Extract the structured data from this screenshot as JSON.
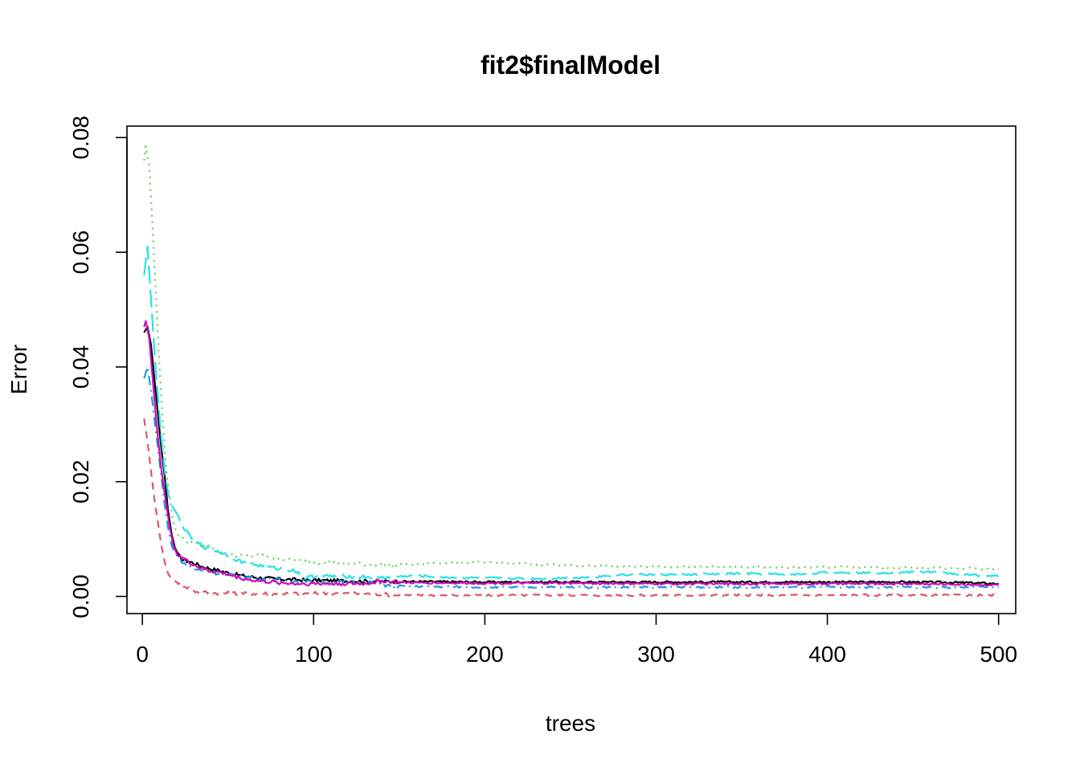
{
  "chart_data": {
    "type": "line",
    "title": "fit2$finalModel",
    "xlabel": "trees",
    "ylabel": "Error",
    "xlim": [
      -9,
      510
    ],
    "ylim": [
      -0.003,
      0.082
    ],
    "xticks": [
      0,
      100,
      200,
      300,
      400,
      500
    ],
    "xtick_labels": [
      "0",
      "100",
      "200",
      "300",
      "400",
      "500"
    ],
    "yticks": [
      0.0,
      0.02,
      0.04,
      0.06,
      0.08
    ],
    "ytick_labels": [
      "0.00",
      "0.02",
      "0.04",
      "0.06",
      "0.08"
    ],
    "grid": false,
    "legend": "none",
    "series": [
      {
        "key": "oob",
        "color": "#000000",
        "dash": "",
        "points": [
          [
            1,
            0.046
          ],
          [
            3,
            0.047
          ],
          [
            5,
            0.044
          ],
          [
            7,
            0.038
          ],
          [
            9,
            0.032
          ],
          [
            11,
            0.026
          ],
          [
            13,
            0.021
          ],
          [
            15,
            0.015
          ],
          [
            17,
            0.011
          ],
          [
            19,
            0.0085
          ],
          [
            21,
            0.0072
          ],
          [
            23,
            0.0065
          ],
          [
            26,
            0.0062
          ],
          [
            30,
            0.0058
          ],
          [
            35,
            0.0052
          ],
          [
            40,
            0.0048
          ],
          [
            45,
            0.0045
          ],
          [
            50,
            0.0041
          ],
          [
            55,
            0.0038
          ],
          [
            60,
            0.0035
          ],
          [
            70,
            0.0032
          ],
          [
            80,
            0.003
          ],
          [
            90,
            0.0029
          ],
          [
            100,
            0.0028
          ],
          [
            120,
            0.0027
          ],
          [
            150,
            0.0026
          ],
          [
            200,
            0.0025
          ],
          [
            250,
            0.0025
          ],
          [
            300,
            0.0025
          ],
          [
            350,
            0.0025
          ],
          [
            400,
            0.0025
          ],
          [
            450,
            0.0025
          ],
          [
            480,
            0.0024
          ],
          [
            500,
            0.0022
          ]
        ]
      },
      {
        "key": "class-2",
        "color": "#DF536B",
        "dash": "9,7",
        "points": [
          [
            1,
            0.031
          ],
          [
            3,
            0.027
          ],
          [
            5,
            0.022
          ],
          [
            7,
            0.017
          ],
          [
            9,
            0.013
          ],
          [
            11,
            0.009
          ],
          [
            13,
            0.006
          ],
          [
            15,
            0.004
          ],
          [
            17,
            0.003
          ],
          [
            20,
            0.0025
          ],
          [
            25,
            0.0018
          ],
          [
            30,
            0.0009
          ],
          [
            40,
            0.0006
          ],
          [
            60,
            0.0005
          ],
          [
            100,
            0.0005
          ],
          [
            120,
            0.0005
          ],
          [
            140,
            0.0004
          ],
          [
            145,
            0.0002
          ],
          [
            200,
            0.0002
          ],
          [
            300,
            0.0002
          ],
          [
            400,
            0.0002
          ],
          [
            500,
            0.0002
          ]
        ]
      },
      {
        "key": "class-3",
        "color": "#61D04F",
        "dash": "2,6",
        "points": [
          [
            1,
            0.076
          ],
          [
            2,
            0.0785
          ],
          [
            4,
            0.075
          ],
          [
            6,
            0.064
          ],
          [
            8,
            0.052
          ],
          [
            10,
            0.04
          ],
          [
            12,
            0.03
          ],
          [
            14,
            0.022
          ],
          [
            16,
            0.017
          ],
          [
            18,
            0.013
          ],
          [
            20,
            0.011
          ],
          [
            25,
            0.0098
          ],
          [
            30,
            0.0093
          ],
          [
            40,
            0.0088
          ],
          [
            50,
            0.0073
          ],
          [
            60,
            0.007
          ],
          [
            70,
            0.0072
          ],
          [
            80,
            0.0065
          ],
          [
            90,
            0.0062
          ],
          [
            100,
            0.006
          ],
          [
            120,
            0.0057
          ],
          [
            150,
            0.0055
          ],
          [
            190,
            0.006
          ],
          [
            220,
            0.0057
          ],
          [
            260,
            0.0053
          ],
          [
            300,
            0.0052
          ],
          [
            350,
            0.0051
          ],
          [
            400,
            0.0051
          ],
          [
            450,
            0.005
          ],
          [
            500,
            0.0048
          ]
        ]
      },
      {
        "key": "class-4",
        "color": "#2297E6",
        "dash": "12,6,2,6",
        "points": [
          [
            1,
            0.038
          ],
          [
            3,
            0.04
          ],
          [
            5,
            0.036
          ],
          [
            7,
            0.031
          ],
          [
            9,
            0.026
          ],
          [
            11,
            0.021
          ],
          [
            13,
            0.016
          ],
          [
            15,
            0.012
          ],
          [
            17,
            0.009
          ],
          [
            19,
            0.0075
          ],
          [
            22,
            0.0065
          ],
          [
            25,
            0.0055
          ],
          [
            30,
            0.0048
          ],
          [
            40,
            0.0042
          ],
          [
            50,
            0.0038
          ],
          [
            60,
            0.0035
          ],
          [
            70,
            0.0031
          ],
          [
            80,
            0.003
          ],
          [
            90,
            0.0026
          ],
          [
            100,
            0.0025
          ],
          [
            130,
            0.0025
          ],
          [
            145,
            0.0018
          ],
          [
            200,
            0.0016
          ],
          [
            300,
            0.0016
          ],
          [
            400,
            0.0016
          ],
          [
            500,
            0.0016
          ]
        ]
      },
      {
        "key": "class-5",
        "color": "#28E2E5",
        "dash": "22,8",
        "points": [
          [
            1,
            0.056
          ],
          [
            3,
            0.061
          ],
          [
            5,
            0.052
          ],
          [
            7,
            0.043
          ],
          [
            9,
            0.035
          ],
          [
            11,
            0.028
          ],
          [
            13,
            0.022
          ],
          [
            15,
            0.018
          ],
          [
            17,
            0.016
          ],
          [
            20,
            0.0145
          ],
          [
            23,
            0.0125
          ],
          [
            26,
            0.0112
          ],
          [
            30,
            0.0098
          ],
          [
            35,
            0.0088
          ],
          [
            40,
            0.0082
          ],
          [
            45,
            0.0077
          ],
          [
            50,
            0.0072
          ],
          [
            55,
            0.0064
          ],
          [
            60,
            0.0058
          ],
          [
            70,
            0.0053
          ],
          [
            80,
            0.0048
          ],
          [
            90,
            0.0044
          ],
          [
            95,
            0.0032
          ],
          [
            100,
            0.0035
          ],
          [
            120,
            0.0035
          ],
          [
            140,
            0.0033
          ],
          [
            160,
            0.0036
          ],
          [
            180,
            0.0033
          ],
          [
            200,
            0.0032
          ],
          [
            230,
            0.0031
          ],
          [
            260,
            0.0033
          ],
          [
            280,
            0.0038
          ],
          [
            320,
            0.0038
          ],
          [
            350,
            0.004
          ],
          [
            380,
            0.0038
          ],
          [
            400,
            0.0042
          ],
          [
            430,
            0.0041
          ],
          [
            460,
            0.0043
          ],
          [
            480,
            0.0038
          ],
          [
            500,
            0.0035
          ]
        ]
      },
      {
        "key": "class-6",
        "color": "#CD0BBC",
        "dash": "",
        "points": [
          [
            1,
            0.047
          ],
          [
            2,
            0.048
          ],
          [
            4,
            0.045
          ],
          [
            6,
            0.038
          ],
          [
            8,
            0.031
          ],
          [
            10,
            0.025
          ],
          [
            12,
            0.02
          ],
          [
            14,
            0.016
          ],
          [
            16,
            0.012
          ],
          [
            18,
            0.009
          ],
          [
            20,
            0.0075
          ],
          [
            23,
            0.0068
          ],
          [
            26,
            0.0062
          ],
          [
            30,
            0.0055
          ],
          [
            35,
            0.0048
          ],
          [
            40,
            0.0044
          ],
          [
            45,
            0.0042
          ],
          [
            50,
            0.0038
          ],
          [
            55,
            0.0034
          ],
          [
            60,
            0.003
          ],
          [
            65,
            0.0028
          ],
          [
            70,
            0.0026
          ],
          [
            80,
            0.0024
          ],
          [
            90,
            0.0022
          ],
          [
            100,
            0.0022
          ],
          [
            130,
            0.0022
          ],
          [
            140,
            0.0027
          ],
          [
            150,
            0.0024
          ],
          [
            200,
            0.0023
          ],
          [
            250,
            0.0023
          ],
          [
            300,
            0.0022
          ],
          [
            350,
            0.0022
          ],
          [
            400,
            0.0022
          ],
          [
            450,
            0.0022
          ],
          [
            500,
            0.002
          ]
        ]
      }
    ]
  }
}
